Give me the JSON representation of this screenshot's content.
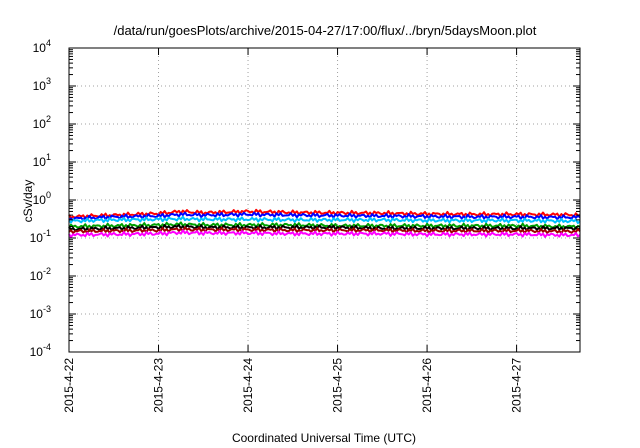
{
  "chart_data": {
    "type": "line",
    "title": "/data/run/goesPlots/archive/2015-04-27/17:00/flux/../bryn/5daysMoon.plot",
    "xlabel": "Coordinated Universal Time (UTC)",
    "ylabel": "cSv/day",
    "y_scale": "log",
    "ylim": [
      0.0001,
      10000
    ],
    "y_ticks": [
      {
        "base": "10",
        "exp": "-4",
        "value": 0.0001
      },
      {
        "base": "10",
        "exp": "-3",
        "value": 0.001
      },
      {
        "base": "10",
        "exp": "-2",
        "value": 0.01
      },
      {
        "base": "10",
        "exp": "-1",
        "value": 0.1
      },
      {
        "base": "10",
        "exp": "0",
        "value": 1
      },
      {
        "base": "10",
        "exp": "1",
        "value": 10
      },
      {
        "base": "10",
        "exp": "2",
        "value": 100
      },
      {
        "base": "10",
        "exp": "3",
        "value": 1000
      },
      {
        "base": "10",
        "exp": "4",
        "value": 10000
      }
    ],
    "xlim": [
      "2015-04-22",
      "2015-04-27 17:00"
    ],
    "x_ticks": [
      "2015-4-22",
      "2015-4-23",
      "2015-4-24",
      "2015-4-25",
      "2015-4-26",
      "2015-4-27"
    ],
    "grid": true,
    "series": [
      {
        "color": "#ff0000",
        "x": [
          "2015-04-22 00:00",
          "2015-04-22 12:00",
          "2015-04-23 00:00",
          "2015-04-23 06:00",
          "2015-04-23 12:00",
          "2015-04-24 00:00",
          "2015-04-24 12:00",
          "2015-04-25 00:00",
          "2015-04-25 12:00",
          "2015-04-26 00:00",
          "2015-04-26 12:00",
          "2015-04-27 00:00",
          "2015-04-27 12:00",
          "2015-04-27 17:00"
        ],
        "values": [
          0.36,
          0.4,
          0.44,
          0.5,
          0.46,
          0.5,
          0.47,
          0.46,
          0.45,
          0.43,
          0.42,
          0.42,
          0.41,
          0.4
        ]
      },
      {
        "color": "#0000ff",
        "x": [
          "2015-04-22 00:00",
          "2015-04-22 12:00",
          "2015-04-23 00:00",
          "2015-04-23 06:00",
          "2015-04-23 12:00",
          "2015-04-24 00:00",
          "2015-04-24 12:00",
          "2015-04-25 00:00",
          "2015-04-25 12:00",
          "2015-04-26 00:00",
          "2015-04-26 12:00",
          "2015-04-27 00:00",
          "2015-04-27 12:00",
          "2015-04-27 17:00"
        ],
        "values": [
          0.32,
          0.36,
          0.38,
          0.42,
          0.4,
          0.42,
          0.4,
          0.39,
          0.38,
          0.37,
          0.36,
          0.36,
          0.35,
          0.35
        ]
      },
      {
        "color": "#00c0ff",
        "x": [
          "2015-04-22 00:00",
          "2015-04-22 12:00",
          "2015-04-23 00:00",
          "2015-04-23 06:00",
          "2015-04-23 12:00",
          "2015-04-24 00:00",
          "2015-04-24 12:00",
          "2015-04-25 00:00",
          "2015-04-25 12:00",
          "2015-04-26 00:00",
          "2015-04-26 12:00",
          "2015-04-27 00:00",
          "2015-04-27 12:00",
          "2015-04-27 17:00"
        ],
        "values": [
          0.28,
          0.3,
          0.31,
          0.32,
          0.31,
          0.31,
          0.3,
          0.3,
          0.3,
          0.29,
          0.29,
          0.29,
          0.28,
          0.28
        ]
      },
      {
        "color": "#00a000",
        "x": [
          "2015-04-22 00:00",
          "2015-04-22 12:00",
          "2015-04-23 00:00",
          "2015-04-23 06:00",
          "2015-04-23 12:00",
          "2015-04-24 00:00",
          "2015-04-24 12:00",
          "2015-04-25 00:00",
          "2015-04-25 12:00",
          "2015-04-26 00:00",
          "2015-04-26 12:00",
          "2015-04-27 00:00",
          "2015-04-27 12:00",
          "2015-04-27 17:00"
        ],
        "values": [
          0.2,
          0.21,
          0.22,
          0.23,
          0.22,
          0.22,
          0.22,
          0.21,
          0.21,
          0.21,
          0.21,
          0.21,
          0.2,
          0.2
        ]
      },
      {
        "color": "#000000",
        "x": [
          "2015-04-22 00:00",
          "2015-04-22 12:00",
          "2015-04-23 00:00",
          "2015-04-23 06:00",
          "2015-04-23 12:00",
          "2015-04-24 00:00",
          "2015-04-24 12:00",
          "2015-04-25 00:00",
          "2015-04-25 12:00",
          "2015-04-26 00:00",
          "2015-04-26 12:00",
          "2015-04-27 00:00",
          "2015-04-27 12:00",
          "2015-04-27 17:00"
        ],
        "values": [
          0.17,
          0.18,
          0.19,
          0.2,
          0.19,
          0.19,
          0.19,
          0.19,
          0.18,
          0.18,
          0.18,
          0.18,
          0.18,
          0.18
        ]
      },
      {
        "color": "#a00000",
        "x": [
          "2015-04-22 00:00",
          "2015-04-22 12:00",
          "2015-04-23 00:00",
          "2015-04-23 06:00",
          "2015-04-23 12:00",
          "2015-04-24 00:00",
          "2015-04-24 12:00",
          "2015-04-25 00:00",
          "2015-04-25 12:00",
          "2015-04-26 00:00",
          "2015-04-26 12:00",
          "2015-04-27 00:00",
          "2015-04-27 12:00",
          "2015-04-27 17:00"
        ],
        "values": [
          0.15,
          0.155,
          0.16,
          0.17,
          0.165,
          0.165,
          0.16,
          0.16,
          0.16,
          0.155,
          0.155,
          0.155,
          0.15,
          0.15
        ]
      },
      {
        "color": "#ff00ff",
        "x": [
          "2015-04-22 00:00",
          "2015-04-22 12:00",
          "2015-04-23 00:00",
          "2015-04-23 06:00",
          "2015-04-23 12:00",
          "2015-04-24 00:00",
          "2015-04-24 12:00",
          "2015-04-25 00:00",
          "2015-04-25 12:00",
          "2015-04-26 00:00",
          "2015-04-26 12:00",
          "2015-04-27 00:00",
          "2015-04-27 12:00",
          "2015-04-27 17:00"
        ],
        "values": [
          0.12,
          0.125,
          0.13,
          0.14,
          0.135,
          0.135,
          0.13,
          0.13,
          0.13,
          0.125,
          0.125,
          0.125,
          0.12,
          0.12
        ]
      }
    ]
  }
}
